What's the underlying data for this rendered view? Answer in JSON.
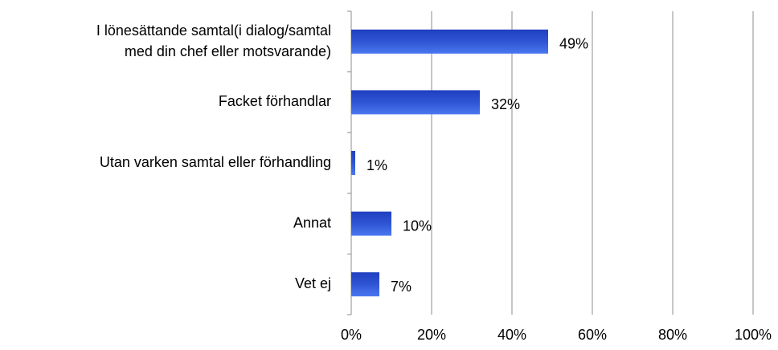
{
  "chart_data": {
    "type": "barh",
    "categories": [
      "I lönesättande samtal(i dialog/samtal\nmed din chef eller motsvarande)",
      "Facket förhandlar",
      "Utan varken samtal eller förhandling",
      "Annat",
      "Vet ej"
    ],
    "values": [
      49,
      32,
      1,
      10,
      7
    ],
    "value_labels": [
      "49%",
      "32%",
      "1%",
      "10%",
      "7%"
    ],
    "color": "#2f55d4",
    "xlim": [
      0,
      100
    ],
    "xticks": [
      {
        "value": 0,
        "label": "0%"
      },
      {
        "value": 20,
        "label": "20%"
      },
      {
        "value": 40,
        "label": "40%"
      },
      {
        "value": 60,
        "label": "60%"
      },
      {
        "value": 80,
        "label": "80%"
      },
      {
        "value": 100,
        "label": "100%"
      }
    ],
    "grid": true
  }
}
